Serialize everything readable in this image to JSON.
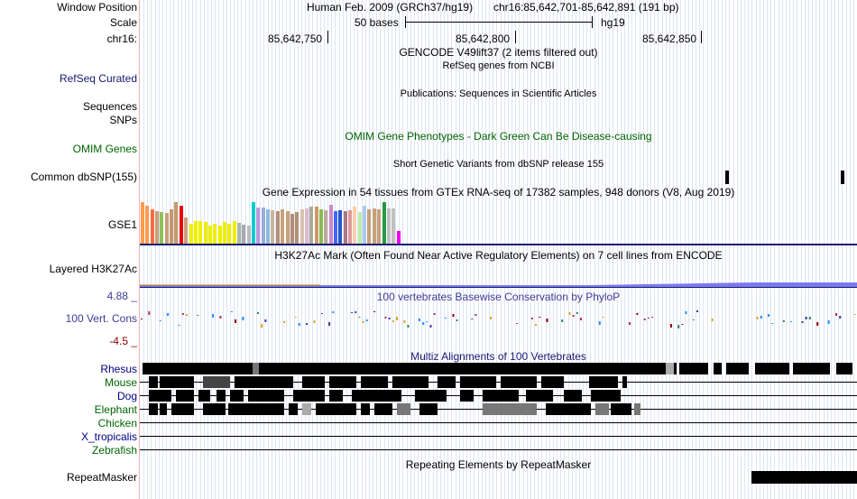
{
  "sidebar": {
    "labels": [
      {
        "text": "Window Position",
        "color": "#000000"
      },
      {
        "text": "Scale",
        "color": "#000000"
      },
      {
        "text": "chr16:",
        "color": "#000000"
      },
      {
        "text": "RefSeq Curated",
        "color": "#191970"
      },
      {
        "text": "Sequences",
        "color": "#000000"
      },
      {
        "text": "SNPs",
        "color": "#000000"
      },
      {
        "text": "OMIM Genes",
        "color": "#006400"
      },
      {
        "text": "Common dbSNP(155)",
        "color": "#000000"
      },
      {
        "text": "GSE1",
        "color": "#000000"
      },
      {
        "text": "Layered H3K27Ac",
        "color": "#000000"
      },
      {
        "text": "100 Vert. Cons",
        "color": "#3c3c96"
      },
      {
        "text": "Rhesus",
        "color": "#000080"
      },
      {
        "text": "Mouse",
        "color": "#006400"
      },
      {
        "text": "Dog",
        "color": "#000080"
      },
      {
        "text": "Elephant",
        "color": "#006400"
      },
      {
        "text": "Chicken",
        "color": "#006400"
      },
      {
        "text": "X_tropicalis",
        "color": "#000080"
      },
      {
        "text": "Zebrafish",
        "color": "#006400"
      },
      {
        "text": "RepeatMasker",
        "color": "#000000"
      }
    ],
    "cons_max": "4.88 _",
    "cons_min": "-4.5 _"
  },
  "header": {
    "assembly": "Human Feb. 2009 (GRCh37/hg19)",
    "position": "chr16:85,642,701-85,642,891 (191 bp)",
    "scale_label": "50 bases",
    "scale_db": "hg19",
    "ruler": [
      "85,642,750",
      "85,642,800",
      "85,642,850"
    ]
  },
  "tracks": {
    "gencode": "GENCODE V49lift37 (2 items filtered out)",
    "refseq": "RefSeq genes from NCBI",
    "publications": "Publications: Sequences in Scientific Articles",
    "omim": "OMIM Gene Phenotypes - Dark Green Can Be Disease-causing",
    "dbsnp": "Short Genetic Variants from dbSNP release 155",
    "gtex": "Gene Expression in 54 tissues from GTEx RNA-seq of 17382 samples, 948 donors (V8, Aug 2019)",
    "h3k27ac": "H3K27Ac Mark (Often Found Near Active Regulatory Elements) on 7 cell lines from ENCODE",
    "phylop": "100 vertebrates Basewise Conservation by PhyloP",
    "multiz": "Multiz Alignments of 100 Vertebrates",
    "repeatmasker": "Repeating Elements by RepeatMasker"
  },
  "gtex": {
    "values": [
      0.95,
      0.88,
      0.8,
      0.74,
      0.72,
      0.7,
      0.8,
      0.95,
      0.88,
      0.6,
      0.45,
      0.52,
      0.52,
      0.5,
      0.42,
      0.45,
      0.42,
      0.5,
      0.45,
      0.52,
      0.48,
      0.44,
      0.42,
      0.95,
      0.83,
      0.83,
      0.8,
      0.78,
      0.75,
      0.8,
      0.75,
      0.68,
      0.72,
      0.8,
      0.82,
      0.85,
      0.85,
      0.8,
      0.77,
      0.9,
      0.75,
      0.77,
      0.76,
      0.78,
      0.85,
      0.73,
      0.88,
      0.8,
      0.82,
      0.8,
      0.95,
      0.82,
      0.82,
      0.3
    ],
    "colors": [
      "#ff9b4f",
      "#ff9b4f",
      "#ff6b3f",
      "#c8a07a",
      "#8ec257",
      "#c8a07a",
      "#c49a6c",
      "#c49a6c",
      "#ee0000",
      "#c8a07a",
      "#f0f000",
      "#f0f000",
      "#f0f000",
      "#eeee00",
      "#eeee00",
      "#eeee00",
      "#eeee00",
      "#eeee00",
      "#eeee00",
      "#eeee00",
      "#aab5ab",
      "#aaaaaa",
      "#bbbbbb",
      "#00cccc",
      "#bb99dd",
      "#99aadd",
      "#88bbdd",
      "#c8b49c",
      "#b09078",
      "#c8a07a",
      "#c8a07a",
      "#b59078",
      "#b09078",
      "#d8c0b0",
      "#ddbbcc",
      "#aaaa99",
      "#cc9966",
      "#88bb55",
      "#bbaa99",
      "#cc88cc",
      "#4466ff",
      "#2255cc",
      "#aa7788",
      "#dd9999",
      "#ffccaa",
      "#bbeeaa",
      "#aaccee",
      "#c8a07a",
      "#c8a07a",
      "#c8a07a",
      "#229944",
      "#c0c0c0",
      "#c0c0c0",
      "#ee00ee"
    ]
  },
  "colors": {
    "separator": "#191970",
    "cons_label": "#3c3c96",
    "cons_neg": "#8b0000",
    "h3k27ac": "#7b7bee",
    "black": "#000000"
  }
}
